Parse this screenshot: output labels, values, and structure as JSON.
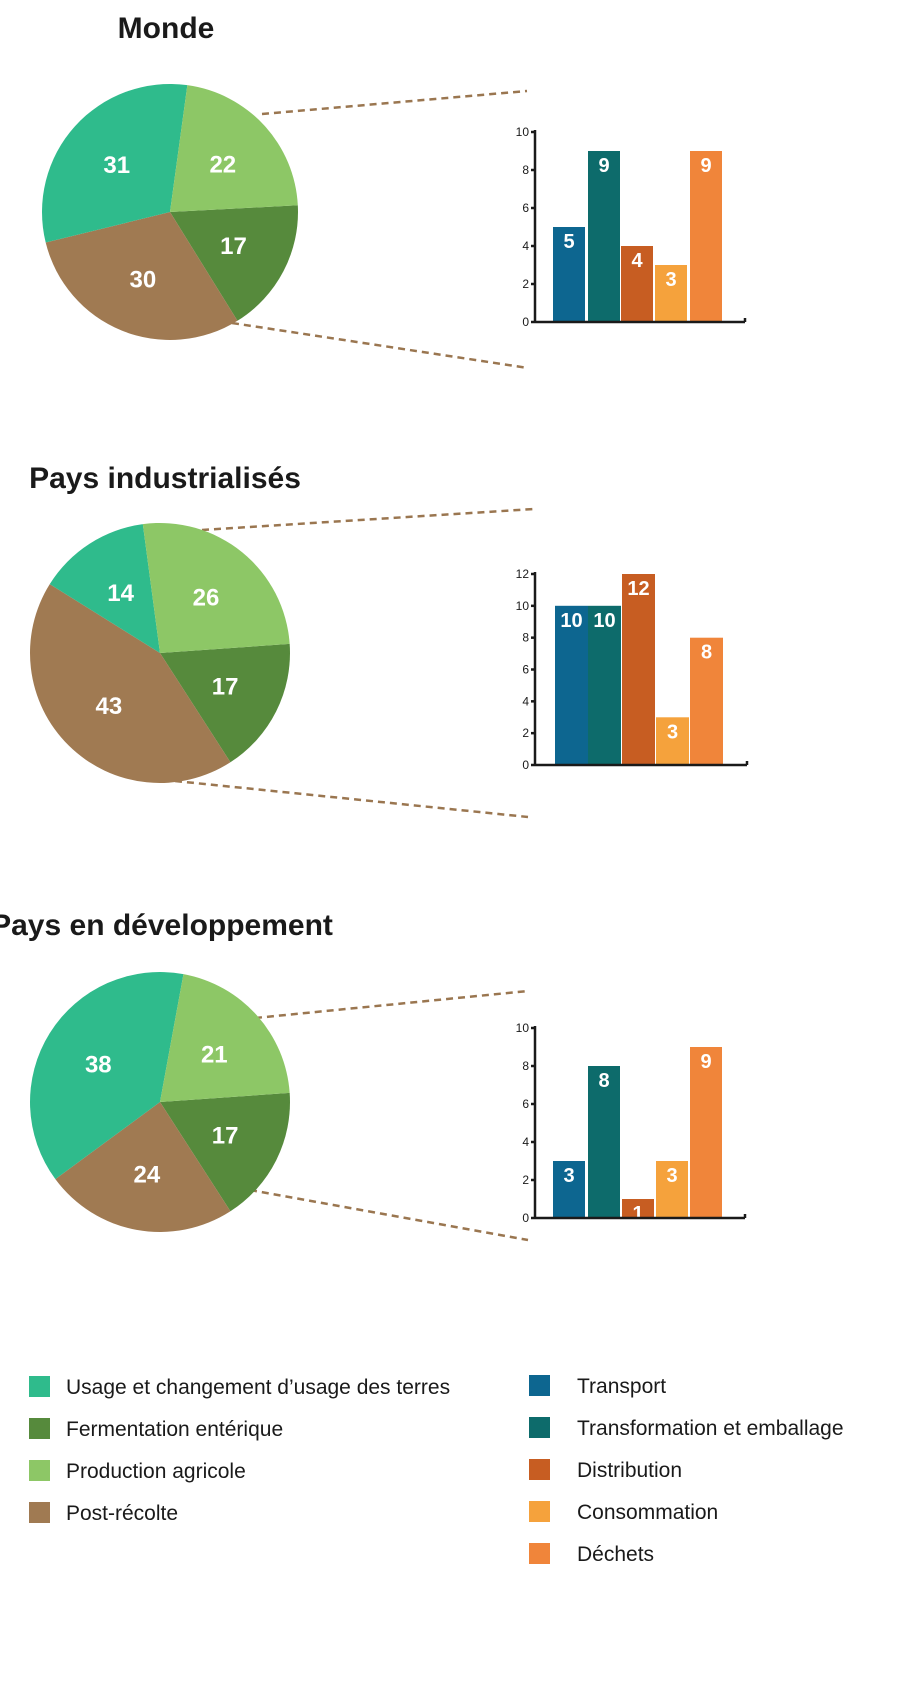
{
  "colors": {
    "land_use": "#2fbb8c",
    "enteric": "#568a3c",
    "agri": "#8dc766",
    "post": "#a07a52",
    "transport": "#0d6690",
    "processing": "#0d6b6b",
    "distribution": "#c75d22",
    "consumption": "#f5a23c",
    "waste": "#f0853a"
  },
  "chart_data": [
    {
      "type": "pie",
      "title": "Monde",
      "slices": [
        {
          "key": "enteric",
          "value": 17,
          "label": "17"
        },
        {
          "key": "post",
          "value": 30,
          "label": "30"
        },
        {
          "key": "land_use",
          "value": 31,
          "label": "31"
        },
        {
          "key": "agri",
          "value": 22,
          "label": "22"
        }
      ],
      "breakdown": {
        "type": "bar",
        "categories": [
          "Transport",
          "Transformation et emballage",
          "Distribution",
          "Consommation",
          "Déchets"
        ],
        "keys": [
          "transport",
          "processing",
          "distribution",
          "consumption",
          "waste"
        ],
        "values": [
          5,
          9,
          4,
          3,
          9
        ],
        "value_labels": [
          "5",
          "9",
          "4",
          "3",
          "9"
        ],
        "ylim": [
          0,
          10
        ],
        "yticks": [
          0,
          2,
          4,
          6,
          8,
          10
        ],
        "ytick_labels": [
          "0",
          "2",
          "4",
          "6",
          "8",
          "10"
        ]
      }
    },
    {
      "type": "pie",
      "title": "Pays industrialisés",
      "slices": [
        {
          "key": "enteric",
          "value": 17,
          "label": "17"
        },
        {
          "key": "post",
          "value": 43,
          "label": "43"
        },
        {
          "key": "land_use",
          "value": 14,
          "label": "14"
        },
        {
          "key": "agri",
          "value": 26,
          "label": "26"
        }
      ],
      "breakdown": {
        "type": "bar",
        "categories": [
          "Transport",
          "Transformation et emballage",
          "Distribution",
          "Consommation",
          "Déchets"
        ],
        "keys": [
          "transport",
          "processing",
          "distribution",
          "consumption",
          "waste"
        ],
        "values": [
          10,
          10,
          12,
          3,
          8
        ],
        "value_labels": [
          "10",
          "10",
          "12",
          "3",
          "8"
        ],
        "ylim": [
          0,
          12
        ],
        "yticks": [
          0,
          2,
          4,
          6,
          8,
          10,
          12
        ],
        "ytick_labels": [
          "0",
          "2",
          "4",
          "6",
          "8",
          "10",
          "12"
        ]
      }
    },
    {
      "type": "pie",
      "title": "Pays en développement",
      "slices": [
        {
          "key": "enteric",
          "value": 17,
          "label": "17"
        },
        {
          "key": "post",
          "value": 24,
          "label": "24"
        },
        {
          "key": "land_use",
          "value": 38,
          "label": "38"
        },
        {
          "key": "agri",
          "value": 21,
          "label": "21"
        }
      ],
      "breakdown": {
        "type": "bar",
        "categories": [
          "Transport",
          "Transformation et emballage",
          "Distribution",
          "Consommation",
          "Déchets"
        ],
        "keys": [
          "transport",
          "processing",
          "distribution",
          "consumption",
          "waste"
        ],
        "values": [
          3,
          8,
          1,
          3,
          9
        ],
        "value_labels": [
          "3",
          "8",
          "1",
          "3",
          "9"
        ],
        "ylim": [
          0,
          10
        ],
        "yticks": [
          0,
          2,
          4,
          6,
          8,
          10
        ],
        "ytick_labels": [
          "0",
          "2",
          "4",
          "6",
          "8",
          "10"
        ]
      }
    }
  ],
  "legend": {
    "pie_items": [
      {
        "key": "land_use",
        "label": "Usage et changement d’usage des terres"
      },
      {
        "key": "enteric",
        "label": "Fermentation entérique"
      },
      {
        "key": "agri",
        "label": "Production agricole"
      },
      {
        "key": "post",
        "label": "Post-récolte"
      }
    ],
    "bar_items": [
      {
        "key": "transport",
        "label": "Transport"
      },
      {
        "key": "processing",
        "label": "Transformation et emballage"
      },
      {
        "key": "distribution",
        "label": "Distribution"
      },
      {
        "key": "consumption",
        "label": "Consommation"
      },
      {
        "key": "waste",
        "label": "Déchets"
      }
    ]
  }
}
